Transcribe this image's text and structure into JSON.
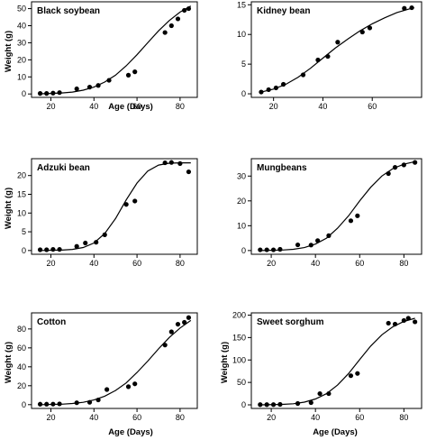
{
  "chart_data": [
    {
      "type": "scatter",
      "title": "Black  soybean",
      "xlabel": "Age (Days)",
      "ylabel": "Weight (g)",
      "xlim": [
        11,
        88
      ],
      "ylim": [
        -2,
        54
      ],
      "xticks": [
        20,
        40,
        60,
        80
      ],
      "yticks": [
        0,
        10,
        20,
        30,
        40,
        50
      ],
      "series": [
        {
          "x": [
            15,
            18,
            21,
            24,
            32,
            38,
            42,
            47,
            56,
            59,
            73,
            76,
            79,
            82,
            84
          ],
          "y": [
            0.3,
            0.3,
            0.5,
            0.8,
            3,
            4,
            5,
            8,
            11,
            13,
            36,
            40,
            44,
            49,
            50
          ]
        }
      ],
      "fit": {
        "x": [
          15,
          20,
          25,
          30,
          35,
          40,
          45,
          50,
          55,
          60,
          65,
          70,
          75,
          80,
          85
        ],
        "y": [
          0.1,
          0.3,
          0.6,
          1.1,
          2.2,
          4,
          7,
          11,
          16.5,
          23,
          30,
          37,
          43,
          48,
          51.5
        ]
      }
    },
    {
      "type": "scatter",
      "title": "Kidney bean",
      "xlabel": "",
      "ylabel": "",
      "xlim": [
        11,
        80
      ],
      "ylim": [
        -0.6,
        15.5
      ],
      "xticks": [
        20,
        40,
        60
      ],
      "yticks": [
        0,
        5,
        10,
        15
      ],
      "series": [
        {
          "x": [
            15,
            18,
            21,
            24,
            32,
            38,
            42,
            46,
            56,
            59,
            73,
            76
          ],
          "y": [
            0.3,
            0.7,
            1,
            1.6,
            3.2,
            5.7,
            6.3,
            8.7,
            10.4,
            11.1,
            14.4,
            14.5
          ]
        }
      ],
      "fit": {
        "x": [
          15,
          20,
          25,
          30,
          35,
          40,
          45,
          50,
          55,
          60,
          65,
          70,
          75,
          77
        ],
        "y": [
          0.3,
          0.8,
          1.6,
          2.8,
          4.3,
          6,
          7.7,
          9.2,
          10.6,
          11.8,
          12.8,
          13.7,
          14.3,
          14.5
        ]
      }
    },
    {
      "type": "scatter",
      "title": "Adzuki bean",
      "xlabel": "",
      "ylabel": "Weight (g)",
      "xlim": [
        11,
        88
      ],
      "ylim": [
        -1,
        24.5
      ],
      "xticks": [
        20,
        40,
        60,
        80
      ],
      "yticks": [
        0,
        5,
        10,
        15,
        20
      ],
      "series": [
        {
          "x": [
            15,
            18,
            21,
            24,
            32,
            36,
            41,
            45,
            55,
            59,
            73,
            76,
            80,
            84
          ],
          "y": [
            0.2,
            0.2,
            0.3,
            0.3,
            1.1,
            2,
            2.2,
            4.2,
            12.3,
            13.2,
            23.4,
            23.5,
            23.2,
            21
          ]
        }
      ],
      "fit": {
        "x": [
          15,
          25,
          30,
          35,
          40,
          45,
          50,
          55,
          60,
          65,
          70,
          75,
          80,
          85
        ],
        "y": [
          0,
          0.1,
          0.3,
          0.8,
          2,
          4.5,
          8.5,
          13.5,
          18,
          21.2,
          22.8,
          23.3,
          23.4,
          23.4
        ]
      }
    },
    {
      "type": "scatter",
      "title": "Mungbeans",
      "xlabel": "",
      "ylabel": "",
      "xlim": [
        11,
        88
      ],
      "ylim": [
        -1.5,
        37
      ],
      "xticks": [
        20,
        40,
        60,
        80
      ],
      "yticks": [
        0,
        10,
        20,
        30
      ],
      "series": [
        {
          "x": [
            15,
            18,
            21,
            24,
            32,
            38,
            41,
            46,
            56,
            59,
            73,
            76,
            80,
            85
          ],
          "y": [
            0.3,
            0.3,
            0.3,
            0.5,
            2.3,
            2.2,
            4,
            6,
            12,
            14,
            31,
            33.5,
            34.5,
            35.5
          ]
        }
      ],
      "fit": {
        "x": [
          15,
          25,
          30,
          35,
          40,
          45,
          50,
          55,
          60,
          65,
          70,
          75,
          80,
          85
        ],
        "y": [
          0,
          0.2,
          0.5,
          1.2,
          2.6,
          5,
          9,
          14,
          20,
          25.5,
          30,
          33,
          34.8,
          35.8
        ]
      }
    },
    {
      "type": "scatter",
      "title": "Cotton",
      "xlabel": "Age (Days)",
      "ylabel": "Weight (g)",
      "xlim": [
        11,
        88
      ],
      "ylim": [
        -4,
        97
      ],
      "xticks": [
        20,
        40,
        60,
        80
      ],
      "yticks": [
        0,
        20,
        40,
        60,
        80
      ],
      "series": [
        {
          "x": [
            15,
            18,
            21,
            24,
            32,
            38,
            42,
            46,
            56,
            59,
            73,
            76,
            79,
            82,
            84
          ],
          "y": [
            0.5,
            0.5,
            0.6,
            0.8,
            2,
            2.5,
            5,
            16,
            19,
            22,
            63,
            77,
            85,
            87,
            92
          ]
        }
      ],
      "fit": {
        "x": [
          15,
          25,
          30,
          35,
          40,
          45,
          50,
          55,
          60,
          65,
          70,
          75,
          80,
          85
        ],
        "y": [
          0,
          0.5,
          1.2,
          2.5,
          5,
          9,
          15,
          23,
          34,
          46,
          59,
          71,
          81,
          89
        ]
      }
    },
    {
      "type": "scatter",
      "title": "Sweet sorghum",
      "xlabel": "Age (Days)",
      "ylabel": "Weight (g)",
      "xlim": [
        11,
        88
      ],
      "ylim": [
        -8,
        205
      ],
      "xticks": [
        20,
        40,
        60,
        80
      ],
      "yticks": [
        0,
        50,
        100,
        150,
        200
      ],
      "series": [
        {
          "x": [
            15,
            18,
            21,
            24,
            32,
            38,
            42,
            46,
            56,
            59,
            73,
            76,
            80,
            82,
            85
          ],
          "y": [
            0.5,
            0.5,
            0.5,
            1,
            3,
            5,
            25,
            25,
            65,
            70,
            182,
            180,
            188,
            193,
            185
          ]
        }
      ],
      "fit": {
        "x": [
          15,
          25,
          30,
          35,
          40,
          45,
          50,
          55,
          60,
          65,
          70,
          75,
          80,
          85
        ],
        "y": [
          0,
          1,
          2.5,
          6,
          13,
          25,
          44,
          70,
          101,
          131,
          156,
          174,
          186,
          193
        ]
      }
    }
  ]
}
